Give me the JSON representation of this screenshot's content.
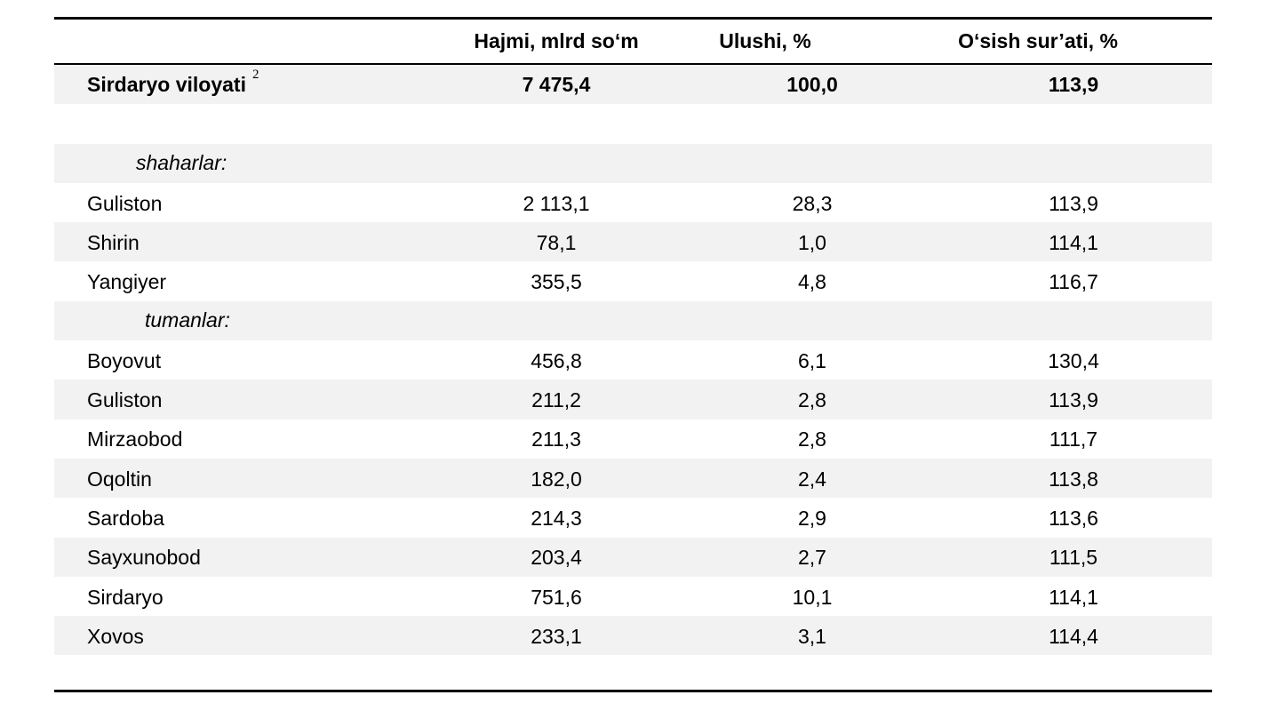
{
  "table": {
    "headers": {
      "name": "",
      "volume": "Hajmi, mlrd so‘m",
      "share": "Ulushi, %",
      "growth": "O‘sish sur’ati, %"
    },
    "total": {
      "name": "Sirdaryo viloyati",
      "footnote": "2",
      "volume": "7 475,4",
      "share": "100,0",
      "growth": "113,9"
    },
    "sections": {
      "cities_label": "shaharlar:",
      "districts_label": "tumanlar:"
    },
    "cities": [
      {
        "name": "Guliston",
        "volume": "2 113,1",
        "share": "28,3",
        "growth": "113,9"
      },
      {
        "name": "Shirin",
        "volume": "78,1",
        "share": "1,0",
        "growth": "114,1"
      },
      {
        "name": "Yangiyer",
        "volume": "355,5",
        "share": "4,8",
        "growth": "116,7"
      }
    ],
    "districts": [
      {
        "name": "Boyovut",
        "volume": "456,8",
        "share": "6,1",
        "growth": "130,4"
      },
      {
        "name": "Guliston",
        "volume": "211,2",
        "share": "2,8",
        "growth": "113,9"
      },
      {
        "name": "Mirzaobod",
        "volume": "211,3",
        "share": "2,8",
        "growth": "111,7"
      },
      {
        "name": "Oqoltin",
        "volume": "182,0",
        "share": "2,4",
        "growth": "113,8"
      },
      {
        "name": "Sardoba",
        "volume": "214,3",
        "share": "2,9",
        "growth": "113,6"
      },
      {
        "name": "Sayxunobod",
        "volume": "203,4",
        "share": "2,7",
        "growth": "111,5"
      },
      {
        "name": "Sirdaryo",
        "volume": "751,6",
        "share": "10,1",
        "growth": "114,1"
      },
      {
        "name": "Xovos",
        "volume": "233,1",
        "share": "3,1",
        "growth": "114,4"
      }
    ],
    "colors": {
      "row_shade": "#f2f2f2",
      "rule": "#000000"
    }
  }
}
